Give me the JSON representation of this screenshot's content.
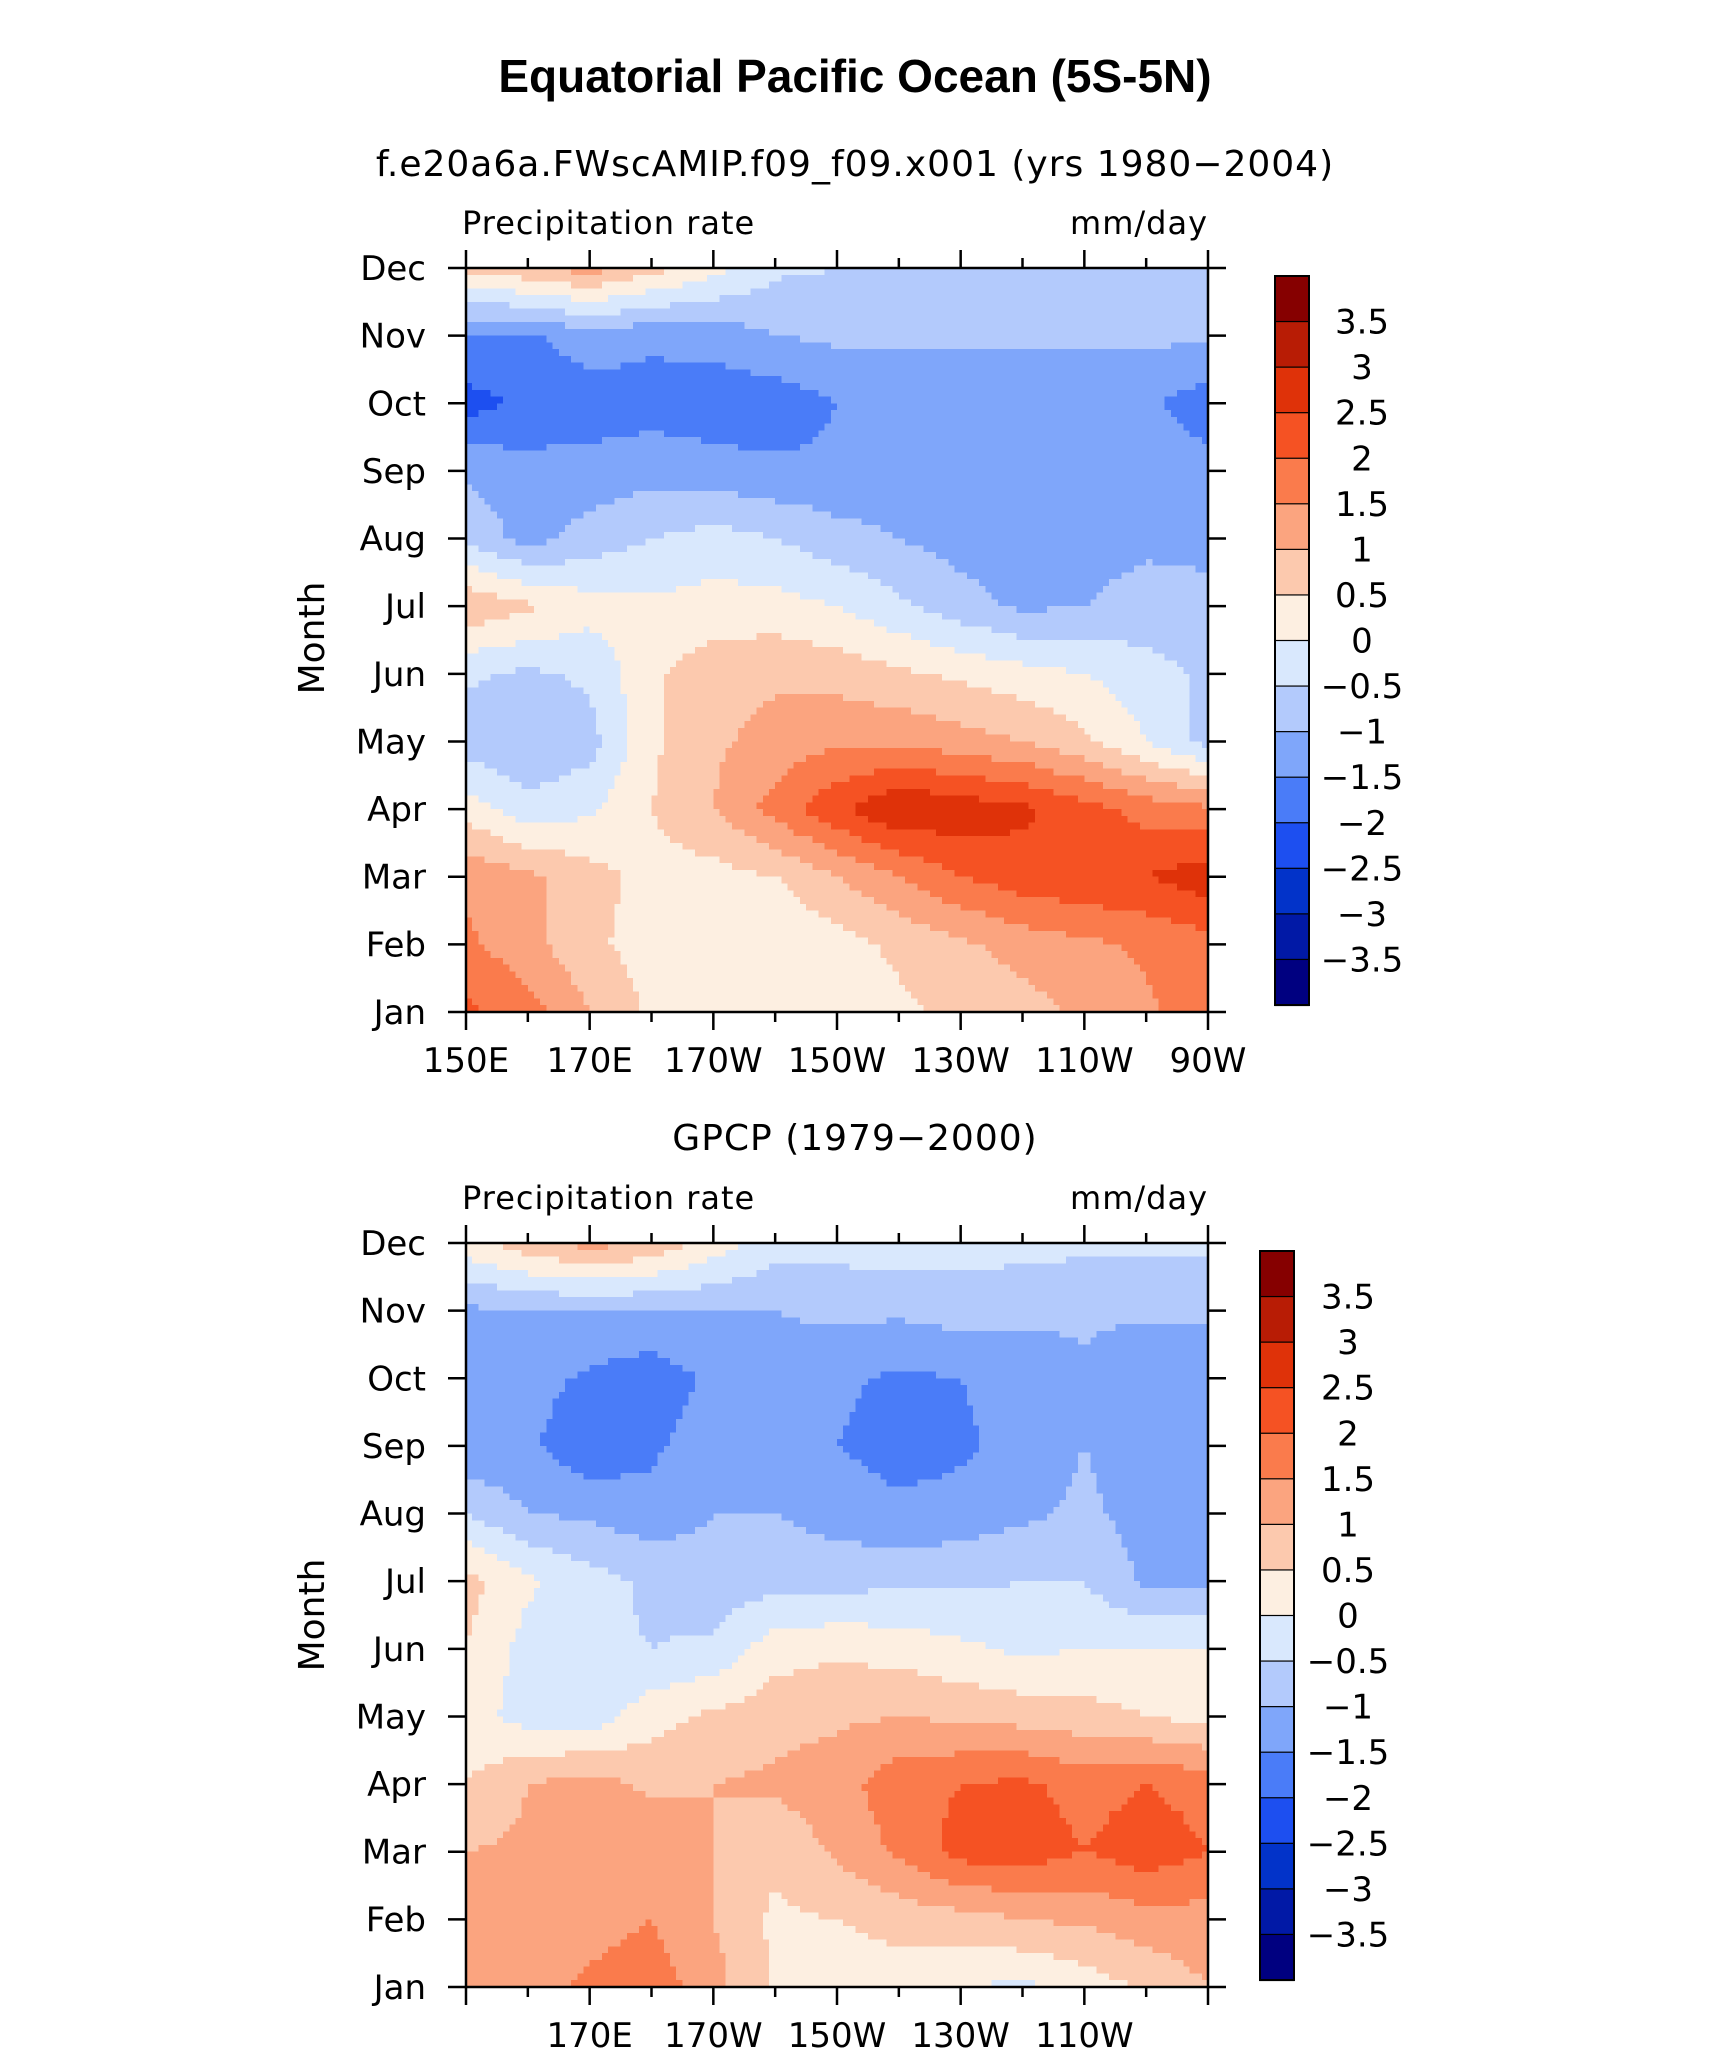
{
  "figure_title": "Equatorial Pacific Ocean (5S-5N)",
  "colors": {
    "levels": [
      "#000080",
      "#0119a6",
      "#0233c9",
      "#1d4ff0",
      "#4a7cf8",
      "#7fa6fa",
      "#b3cafc",
      "#d9e8fd",
      "#fdefe1",
      "#fcc9ae",
      "#fba47f",
      "#fa7b4c",
      "#f55223",
      "#df3209",
      "#b81c05",
      "#860000"
    ]
  },
  "chart_data": [
    {
      "type": "heatmap",
      "subtitle": "f.e20a6a.FWscAMIP.f09_f09.x001 (yrs 1980−2004)",
      "left_label": "Precipitation rate",
      "right_label": "mm/day",
      "ylabel": "Month",
      "x_ticks": [
        150,
        170,
        190,
        210,
        230,
        250,
        270
      ],
      "x_tick_labels": [
        "150E",
        "170E",
        "170W",
        "150W",
        "130W",
        "110W",
        "90W"
      ],
      "y_tick_labels": [
        "Jan",
        "Feb",
        "Mar",
        "Apr",
        "May",
        "Jun",
        "Jul",
        "Aug",
        "Sep",
        "Oct",
        "Nov",
        "Dec"
      ],
      "xlim": [
        150,
        270
      ],
      "ylim": [
        1,
        12
      ],
      "colorbar_labels": [
        "3.5",
        "3",
        "2.5",
        "2",
        "1.5",
        "1",
        "0.5",
        "0",
        "−0.5",
        "−1",
        "−1.5",
        "−2",
        "−2.5",
        "−3",
        "−3.5"
      ],
      "levels": [
        -3.5,
        -3,
        -2.5,
        -2,
        -1.5,
        -1,
        -0.5,
        0,
        0.5,
        1,
        1.5,
        2,
        2.5,
        3,
        3.5
      ],
      "x": [
        150,
        160,
        170,
        180,
        190,
        200,
        210,
        220,
        230,
        240,
        250,
        260,
        270
      ],
      "z": [
        [
          2.1,
          1.7,
          1.0,
          0.4,
          0.2,
          0.2,
          0.3,
          0.4,
          0.6,
          0.8,
          1.1,
          1.4,
          1.8
        ],
        [
          1.6,
          1.2,
          0.6,
          0.3,
          0.1,
          0.0,
          0.3,
          0.6,
          0.9,
          1.2,
          1.4,
          1.6,
          1.8
        ],
        [
          1.4,
          1.1,
          0.7,
          0.3,
          0.3,
          0.5,
          1.0,
          1.5,
          2.0,
          2.3,
          2.4,
          2.5,
          2.8
        ],
        [
          0.3,
          -0.3,
          -0.1,
          0.5,
          1.0,
          1.7,
          2.4,
          3.0,
          2.8,
          2.6,
          2.2,
          1.8,
          1.6
        ],
        [
          -0.8,
          -1.0,
          -0.7,
          0.4,
          0.9,
          1.2,
          1.4,
          1.4,
          1.2,
          1.0,
          0.6,
          0.0,
          -0.7
        ],
        [
          -0.4,
          -0.6,
          -0.4,
          0.4,
          0.8,
          0.9,
          0.8,
          0.6,
          0.4,
          0.2,
          0.0,
          -0.3,
          -0.6
        ],
        [
          0.9,
          0.6,
          0.2,
          0.1,
          0.2,
          0.2,
          0.0,
          -0.4,
          -0.8,
          -1.1,
          -1.0,
          -0.8,
          -0.9
        ],
        [
          -0.6,
          -1.2,
          -0.8,
          -0.5,
          -0.3,
          -0.5,
          -0.8,
          -1.0,
          -1.2,
          -1.3,
          -1.2,
          -1.1,
          -1.1
        ],
        [
          -1.1,
          -1.3,
          -1.3,
          -1.2,
          -1.3,
          -1.4,
          -1.4,
          -1.3,
          -1.3,
          -1.3,
          -1.2,
          -1.2,
          -1.3
        ],
        [
          -2.2,
          -1.9,
          -1.8,
          -1.7,
          -1.8,
          -1.8,
          -1.5,
          -1.4,
          -1.4,
          -1.4,
          -1.4,
          -1.4,
          -1.8
        ],
        [
          -1.5,
          -1.6,
          -1.2,
          -1.4,
          -1.3,
          -1.0,
          -0.9,
          -0.9,
          -0.9,
          -0.9,
          -0.9,
          -0.9,
          -0.9
        ],
        [
          0.6,
          0.9,
          1.2,
          0.7,
          0.2,
          -0.4,
          -0.5,
          -0.5,
          -0.6,
          -0.6,
          -0.6,
          -0.6,
          -0.5
        ]
      ]
    },
    {
      "type": "heatmap",
      "subtitle": "GPCP (1979−2000)",
      "left_label": "Precipitation rate",
      "right_label": "mm/day",
      "ylabel": "Month",
      "x_ticks": [
        170,
        190,
        210,
        230,
        250
      ],
      "x_tick_labels": [
        "170E",
        "170W",
        "150W",
        "130W",
        "110W"
      ],
      "y_tick_labels": [
        "Jan",
        "Feb",
        "Mar",
        "Apr",
        "May",
        "Jun",
        "Jul",
        "Aug",
        "Sep",
        "Oct",
        "Nov",
        "Dec"
      ],
      "xlim": [
        150,
        270
      ],
      "ylim": [
        1,
        12
      ],
      "colorbar_labels": [
        "3.5",
        "3",
        "2.5",
        "2",
        "1.5",
        "1",
        "0.5",
        "0",
        "−0.5",
        "−1",
        "−1.5",
        "−2",
        "−2.5",
        "−3",
        "−3.5"
      ],
      "levels": [
        -3.5,
        -3,
        -2.5,
        -2,
        -1.5,
        -1,
        -0.5,
        0,
        0.5,
        1,
        1.5,
        2,
        2.5,
        3,
        3.5
      ],
      "x": [
        150,
        160,
        170,
        180,
        190,
        200,
        210,
        220,
        230,
        240,
        250,
        260,
        270
      ],
      "z": [
        [
          1.0,
          1.3,
          1.6,
          1.8,
          1.2,
          0.4,
          0.2,
          0.2,
          0.0,
          -0.1,
          0.2,
          0.6,
          1.0
        ],
        [
          1.3,
          1.5,
          1.3,
          1.5,
          1.0,
          0.4,
          0.5,
          0.7,
          0.8,
          1.0,
          1.1,
          1.3,
          1.3
        ],
        [
          1.0,
          1.1,
          1.4,
          1.4,
          1.0,
          0.6,
          1.1,
          1.6,
          2.2,
          2.3,
          2.0,
          2.3,
          2.0
        ],
        [
          0.5,
          1.0,
          1.2,
          0.9,
          1.0,
          1.1,
          1.3,
          1.8,
          2.0,
          2.1,
          1.8,
          2.0,
          1.8
        ],
        [
          0.2,
          -0.2,
          -0.3,
          0.3,
          0.6,
          0.8,
          0.9,
          1.0,
          0.9,
          0.8,
          0.7,
          0.5,
          0.3
        ],
        [
          0.5,
          -0.2,
          -0.4,
          -0.5,
          -0.4,
          0.3,
          0.4,
          0.3,
          0.1,
          -0.1,
          0.0,
          0.0,
          0.0
        ],
        [
          0.7,
          0.1,
          -0.3,
          -0.6,
          -0.8,
          -0.7,
          -0.7,
          -0.6,
          -0.6,
          -0.5,
          -0.5,
          -1.1,
          -1.1
        ],
        [
          -0.5,
          -1.0,
          -1.1,
          -1.3,
          -1.0,
          -1.0,
          -1.2,
          -1.4,
          -1.3,
          -1.1,
          -0.9,
          -1.2,
          -1.2
        ],
        [
          -1.4,
          -1.4,
          -1.9,
          -1.6,
          -1.2,
          -1.1,
          -1.5,
          -1.7,
          -1.6,
          -1.3,
          -1.0,
          -1.3,
          -1.3
        ],
        [
          -1.2,
          -1.3,
          -1.6,
          -1.8,
          -1.4,
          -1.1,
          -1.4,
          -1.6,
          -1.5,
          -1.3,
          -1.1,
          -1.5,
          -1.5
        ],
        [
          -1.1,
          -1.0,
          -1.0,
          -1.0,
          -1.0,
          -1.0,
          -0.9,
          -0.9,
          -0.8,
          -0.9,
          -0.9,
          -0.9,
          -0.9
        ],
        [
          0.3,
          0.8,
          1.2,
          0.9,
          0.3,
          -0.3,
          -0.3,
          -0.2,
          -0.3,
          -0.3,
          -0.4,
          -0.4,
          -0.4
        ]
      ]
    }
  ]
}
